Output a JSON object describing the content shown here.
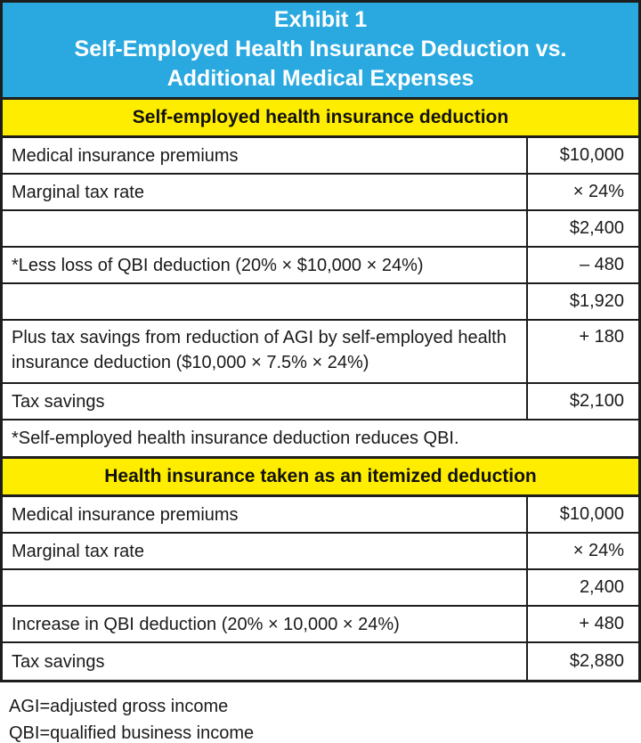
{
  "header": {
    "line1": "Exhibit 1",
    "line2": "Self-Employed Health Insurance Deduction vs.",
    "line3": "Additional Medical Expenses"
  },
  "sections": [
    {
      "title": "Self-employed health insurance deduction",
      "rows": [
        {
          "label": "Medical insurance premiums",
          "value": "$10,000"
        },
        {
          "label": "Marginal tax rate",
          "value": "× 24%"
        },
        {
          "label": "",
          "value": "$2,400"
        },
        {
          "label": "*Less loss of QBI deduction (20% × $10,000 × 24%)",
          "value": "– 480"
        },
        {
          "label": "",
          "value": "$1,920"
        },
        {
          "label": "Plus tax savings from reduction of AGI by self-employed health insurance deduction ($10,000 × 7.5% × 24%)",
          "value": "+ 180"
        },
        {
          "label": "Tax savings",
          "value": "$2,100"
        }
      ],
      "note": "*Self-employed health insurance deduction reduces QBI."
    },
    {
      "title": "Health insurance taken as an itemized deduction",
      "rows": [
        {
          "label": "Medical insurance premiums",
          "value": "$10,000"
        },
        {
          "label": "Marginal tax rate",
          "value": "× 24%"
        },
        {
          "label": "",
          "value": "2,400"
        },
        {
          "label": "Increase in QBI deduction (20% × 10,000 × 24%)",
          "value": "+ 480"
        },
        {
          "label": "Tax savings",
          "value": "$2,880"
        }
      ]
    }
  ],
  "footnotes": [
    "AGI=adjusted gross income",
    "QBI=qualified business income"
  ],
  "colors": {
    "header_blue": "#2aa9e0",
    "band_yellow": "#ffed00",
    "border_black": "#1d1d1d",
    "title_text": "#ffffff"
  }
}
